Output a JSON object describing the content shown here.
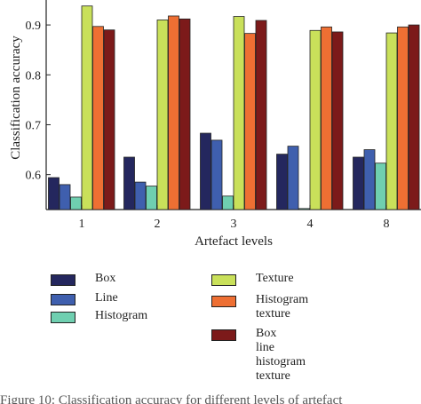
{
  "chart_data": {
    "type": "bar",
    "categories": [
      "1",
      "2",
      "3",
      "4",
      "8"
    ],
    "xlabel": "Artefact levels",
    "ylabel": "Classification accuracy",
    "ylim": [
      0.53,
      0.95
    ],
    "yticks": [
      0.6,
      0.7,
      0.8,
      0.9
    ],
    "series": [
      {
        "name": "Box",
        "color": "#24275e",
        "values": [
          0.594,
          0.635,
          0.683,
          0.641,
          0.635
        ]
      },
      {
        "name": "Line",
        "color": "#3f5fae",
        "values": [
          0.58,
          0.585,
          0.669,
          0.657,
          0.65
        ]
      },
      {
        "name": "Histogram",
        "color": "#6fcfb0",
        "values": [
          0.555,
          0.577,
          0.557,
          0.532,
          0.623
        ]
      },
      {
        "name": "Texture",
        "color": "#c9e05a",
        "values": [
          0.938,
          0.91,
          0.917,
          0.889,
          0.884
        ]
      },
      {
        "name": "Histogram\ntexture",
        "color": "#ee6f33",
        "values": [
          0.897,
          0.918,
          0.883,
          0.896,
          0.896
        ]
      },
      {
        "name": "Box\nline\nhistogram\ntexture",
        "color": "#7c1a1a",
        "values": [
          0.89,
          0.912,
          0.909,
          0.886,
          0.9
        ]
      }
    ],
    "grid": false,
    "legend_position": "bottom"
  },
  "caption": "Figure 10: Classification accuracy for different levels of artefact"
}
